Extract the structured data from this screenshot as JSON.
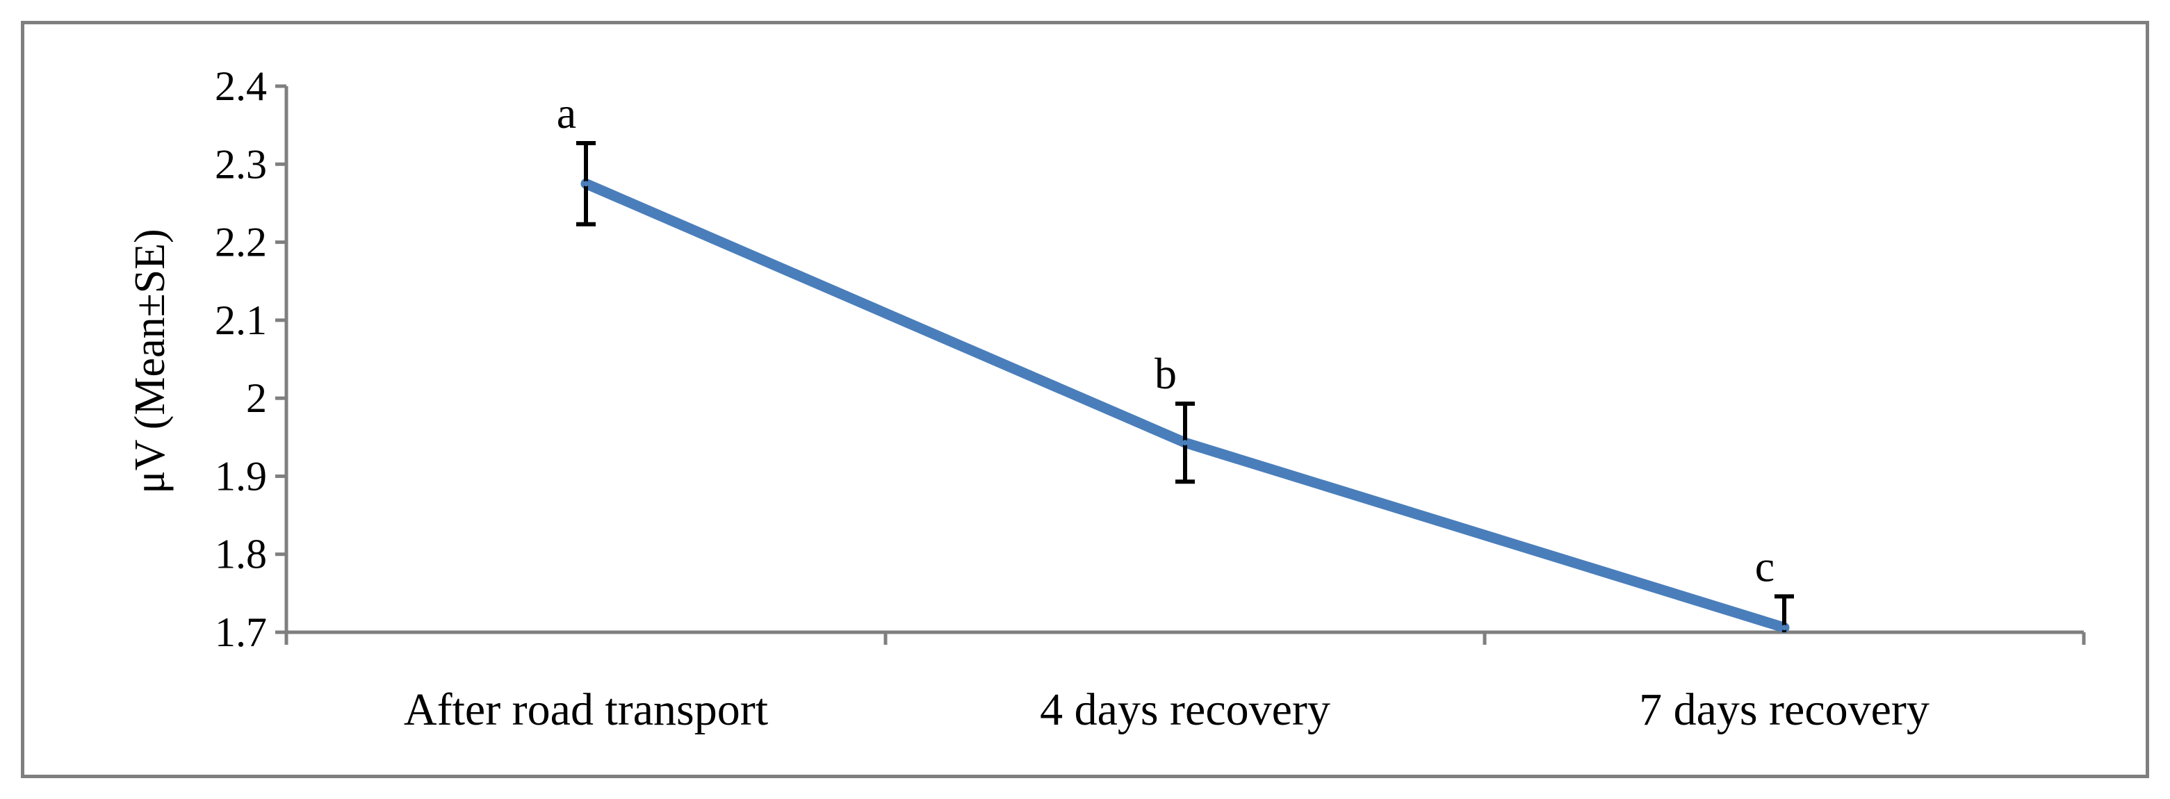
{
  "chart_data": {
    "type": "line",
    "categories": [
      "After road transport",
      "4 days recovery",
      "7 days recovery"
    ],
    "series": [
      {
        "values": [
          2.275,
          1.943,
          1.706
        ],
        "error": [
          0.052,
          0.05,
          0.04
        ],
        "color": "#4a7ebb"
      }
    ],
    "annotations": [
      "a",
      "b",
      "c"
    ],
    "title": "",
    "xlabel": "",
    "ylabel": "μV (Mean±SE)",
    "ylim": [
      1.7,
      2.4
    ],
    "yticks": [
      1.7,
      1.8,
      1.9,
      2,
      2.1,
      2.2,
      2.3,
      2.4
    ],
    "ytick_labels": [
      "1.7",
      "1.8",
      "1.9",
      "2",
      "2.1",
      "2.2",
      "2.3",
      "2.4"
    ],
    "grid": false,
    "legend": "none",
    "error_bar_color": "#000000",
    "axis_color": "#7f7f7f"
  }
}
